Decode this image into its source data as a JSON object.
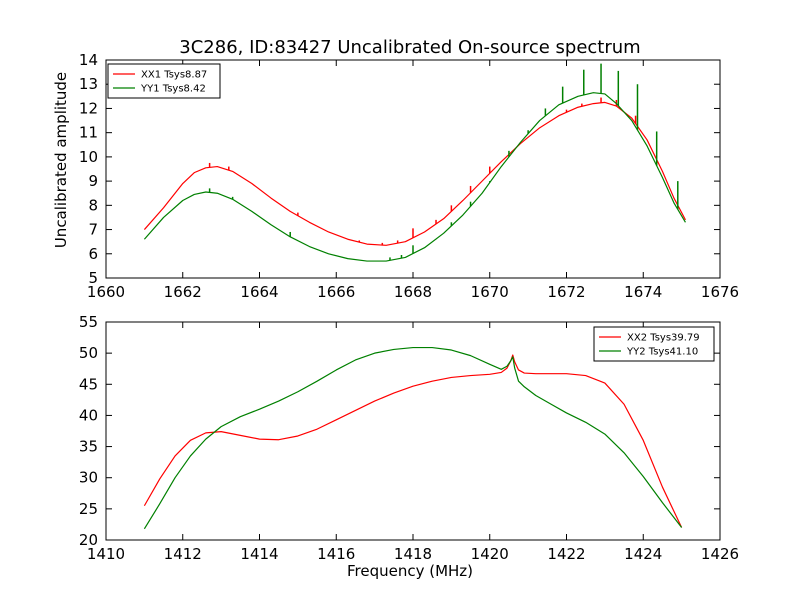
{
  "chart_data": [
    {
      "type": "line",
      "title": "3C286, ID:83427 Uncalibrated On-source spectrum",
      "xlabel": "",
      "ylabel": "Uncalibrated amplitude",
      "xlim": [
        1660,
        1676
      ],
      "ylim": [
        5,
        14
      ],
      "xticks": [
        1660,
        1662,
        1664,
        1666,
        1668,
        1670,
        1672,
        1674,
        1676
      ],
      "yticks": [
        5,
        6,
        7,
        8,
        9,
        10,
        11,
        12,
        13,
        14
      ],
      "legend_position": "top-left",
      "series": [
        {
          "name": "XX1 Tsys8.87",
          "color": "#ff0000",
          "x": [
            1661.0,
            1661.5,
            1662.0,
            1662.3,
            1662.6,
            1662.9,
            1663.3,
            1663.8,
            1664.3,
            1664.8,
            1665.3,
            1665.8,
            1666.3,
            1666.8,
            1667.3,
            1667.8,
            1668.3,
            1668.8,
            1669.3,
            1669.8,
            1670.3,
            1670.8,
            1671.3,
            1671.8,
            1672.3,
            1672.7,
            1673.0,
            1673.3,
            1673.7,
            1674.1,
            1674.5,
            1674.8,
            1675.1
          ],
          "values": [
            7.0,
            7.9,
            8.9,
            9.35,
            9.55,
            9.6,
            9.4,
            8.9,
            8.3,
            7.75,
            7.3,
            6.9,
            6.6,
            6.4,
            6.35,
            6.5,
            6.9,
            7.45,
            8.2,
            9.0,
            9.8,
            10.55,
            11.2,
            11.7,
            12.05,
            12.2,
            12.25,
            12.1,
            11.6,
            10.7,
            9.4,
            8.3,
            7.4
          ],
          "spikes": [
            {
              "x": 1662.7,
              "y": 9.75
            },
            {
              "x": 1663.2,
              "y": 9.6
            },
            {
              "x": 1663.6,
              "y": 9.1
            },
            {
              "x": 1665.0,
              "y": 7.7
            },
            {
              "x": 1665.6,
              "y": 7.05
            },
            {
              "x": 1666.6,
              "y": 6.55
            },
            {
              "x": 1667.2,
              "y": 6.45
            },
            {
              "x": 1667.6,
              "y": 6.55
            },
            {
              "x": 1668.0,
              "y": 7.05
            },
            {
              "x": 1668.6,
              "y": 7.4
            },
            {
              "x": 1669.0,
              "y": 8.0
            },
            {
              "x": 1669.5,
              "y": 8.8
            },
            {
              "x": 1670.0,
              "y": 9.6
            },
            {
              "x": 1672.0,
              "y": 11.95
            },
            {
              "x": 1672.4,
              "y": 12.2
            },
            {
              "x": 1672.9,
              "y": 12.45
            },
            {
              "x": 1673.3,
              "y": 12.35
            },
            {
              "x": 1673.8,
              "y": 11.7
            }
          ]
        },
        {
          "name": "YY1 Tsys8.42",
          "color": "#008000",
          "x": [
            1661.0,
            1661.5,
            1662.0,
            1662.3,
            1662.6,
            1662.9,
            1663.3,
            1663.8,
            1664.3,
            1664.8,
            1665.3,
            1665.8,
            1666.3,
            1666.8,
            1667.3,
            1667.8,
            1668.3,
            1668.8,
            1669.3,
            1669.8,
            1670.3,
            1670.8,
            1671.3,
            1671.8,
            1672.3,
            1672.7,
            1673.0,
            1673.3,
            1673.7,
            1674.1,
            1674.5,
            1674.8,
            1675.1
          ],
          "values": [
            6.6,
            7.5,
            8.2,
            8.45,
            8.55,
            8.5,
            8.25,
            7.75,
            7.2,
            6.7,
            6.3,
            6.0,
            5.8,
            5.7,
            5.7,
            5.85,
            6.25,
            6.85,
            7.6,
            8.5,
            9.6,
            10.6,
            11.5,
            12.15,
            12.5,
            12.65,
            12.6,
            12.2,
            11.5,
            10.45,
            9.15,
            8.1,
            7.3
          ],
          "spikes": [
            {
              "x": 1662.7,
              "y": 8.7
            },
            {
              "x": 1663.3,
              "y": 8.35
            },
            {
              "x": 1664.8,
              "y": 6.9
            },
            {
              "x": 1667.4,
              "y": 5.85
            },
            {
              "x": 1667.7,
              "y": 5.95
            },
            {
              "x": 1668.0,
              "y": 6.35
            },
            {
              "x": 1668.6,
              "y": 6.6
            },
            {
              "x": 1669.0,
              "y": 7.3
            },
            {
              "x": 1669.5,
              "y": 8.15
            },
            {
              "x": 1670.0,
              "y": 9.0
            },
            {
              "x": 1670.5,
              "y": 10.25
            },
            {
              "x": 1671.0,
              "y": 11.1
            },
            {
              "x": 1671.45,
              "y": 12.0
            },
            {
              "x": 1671.9,
              "y": 12.9
            },
            {
              "x": 1672.45,
              "y": 13.6
            },
            {
              "x": 1672.9,
              "y": 13.85
            },
            {
              "x": 1673.35,
              "y": 13.55
            },
            {
              "x": 1673.85,
              "y": 13.0
            },
            {
              "x": 1674.35,
              "y": 11.05
            },
            {
              "x": 1674.9,
              "y": 9.0
            }
          ]
        }
      ]
    },
    {
      "type": "line",
      "title": "",
      "xlabel": "Frequency (MHz)",
      "ylabel": "",
      "xlim": [
        1410,
        1426
      ],
      "ylim": [
        20,
        55
      ],
      "xticks": [
        1410,
        1412,
        1414,
        1416,
        1418,
        1420,
        1422,
        1424,
        1426
      ],
      "yticks": [
        20,
        25,
        30,
        35,
        40,
        45,
        50,
        55
      ],
      "legend_position": "top-right",
      "series": [
        {
          "name": "XX2 Tsys39.79",
          "color": "#ff0000",
          "x": [
            1411.0,
            1411.4,
            1411.8,
            1412.2,
            1412.6,
            1413.0,
            1413.5,
            1414.0,
            1414.5,
            1415.0,
            1415.5,
            1416.0,
            1416.5,
            1417.0,
            1417.5,
            1418.0,
            1418.5,
            1419.0,
            1419.5,
            1420.0,
            1420.3,
            1420.45,
            1420.55,
            1420.6,
            1420.65,
            1420.75,
            1420.9,
            1421.2,
            1421.6,
            1422.0,
            1422.5,
            1423.0,
            1423.5,
            1424.0,
            1424.5,
            1425.0
          ],
          "values": [
            25.5,
            29.8,
            33.5,
            36.0,
            37.2,
            37.4,
            36.8,
            36.2,
            36.1,
            36.7,
            37.8,
            39.3,
            40.8,
            42.3,
            43.6,
            44.7,
            45.5,
            46.1,
            46.4,
            46.6,
            46.9,
            47.6,
            48.8,
            49.7,
            48.6,
            47.3,
            46.8,
            46.7,
            46.7,
            46.7,
            46.4,
            45.2,
            41.8,
            36.0,
            28.5,
            22.0
          ]
        },
        {
          "name": "YY2 Tsys41.10",
          "color": "#008000",
          "x": [
            1411.0,
            1411.4,
            1411.8,
            1412.2,
            1412.6,
            1413.0,
            1413.5,
            1414.0,
            1414.5,
            1415.0,
            1415.5,
            1416.0,
            1416.5,
            1417.0,
            1417.5,
            1418.0,
            1418.5,
            1419.0,
            1419.5,
            1420.0,
            1420.3,
            1420.45,
            1420.55,
            1420.6,
            1420.65,
            1420.75,
            1420.9,
            1421.2,
            1421.6,
            1422.0,
            1422.5,
            1423.0,
            1423.5,
            1424.0,
            1424.5,
            1425.0
          ],
          "values": [
            21.8,
            25.8,
            30.0,
            33.5,
            36.2,
            38.2,
            39.8,
            41.0,
            42.3,
            43.8,
            45.5,
            47.3,
            48.9,
            50.0,
            50.6,
            50.9,
            50.9,
            50.5,
            49.6,
            48.2,
            47.4,
            47.9,
            48.8,
            49.4,
            47.6,
            45.5,
            44.6,
            43.2,
            41.8,
            40.4,
            38.9,
            37.0,
            34.0,
            30.2,
            26.0,
            22.0
          ]
        }
      ]
    }
  ]
}
